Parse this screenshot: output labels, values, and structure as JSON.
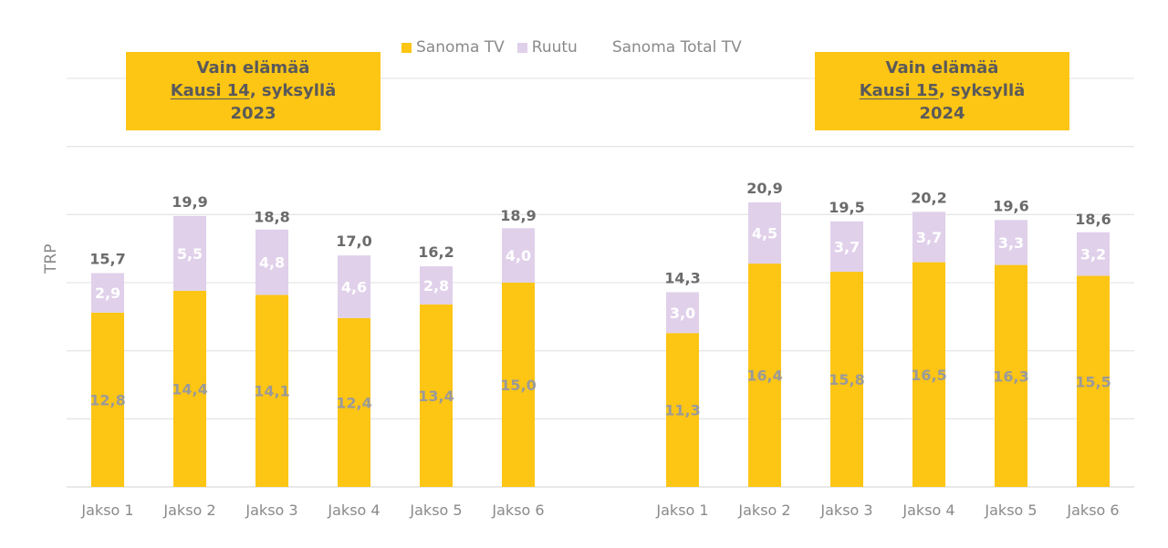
{
  "legend": {
    "items": [
      {
        "label": "Sanoma TV",
        "color": "#FDC514",
        "marker": "square"
      },
      {
        "label": "Ruutu",
        "color": "#E0D0EA",
        "marker": "square"
      },
      {
        "label": "Sanoma Total TV",
        "color": "none",
        "marker": "none"
      }
    ]
  },
  "chart_data": [
    {
      "type": "bar",
      "stacked": true,
      "title_lines": {
        "line1": "Vain elämää",
        "season": "Kausi 14",
        "line2_rest": ", syksyllä",
        "line3": "2023"
      },
      "categories": [
        "Jakso 1",
        "Jakso 2",
        "Jakso 3",
        "Jakso 4",
        "Jakso 5",
        "Jakso 6"
      ],
      "series": [
        {
          "name": "Sanoma TV",
          "color": "#FDC514",
          "values": [
            12.8,
            14.4,
            14.1,
            12.4,
            13.4,
            15.0
          ],
          "labels": [
            "12,8",
            "14,4",
            "14,1",
            "12,4",
            "13,4",
            "15,0"
          ]
        },
        {
          "name": "Ruutu",
          "color": "#E0D0EA",
          "values": [
            2.9,
            5.5,
            4.8,
            4.6,
            2.8,
            4.0
          ],
          "labels": [
            "2,9",
            "5,5",
            "4,8",
            "4,6",
            "2,8",
            "4,0"
          ]
        }
      ],
      "totals": {
        "name": "Sanoma Total TV",
        "values": [
          15.7,
          19.9,
          18.8,
          17.0,
          16.2,
          18.9
        ],
        "labels": [
          "15,7",
          "19,9",
          "18,8",
          "17,0",
          "16,2",
          "18,9"
        ]
      },
      "ylabel": "TRP",
      "ylim": [
        0,
        30
      ],
      "ygrid_step": 5,
      "grid": true,
      "legend_position": "top-center"
    },
    {
      "type": "bar",
      "stacked": true,
      "title_lines": {
        "line1": "Vain elämää",
        "season": "Kausi 15",
        "line2_rest": ", syksyllä",
        "line3": "2024"
      },
      "categories": [
        "Jakso 1",
        "Jakso 2",
        "Jakso 3",
        "Jakso 4",
        "Jakso 5",
        "Jakso 6"
      ],
      "series": [
        {
          "name": "Sanoma TV",
          "color": "#FDC514",
          "values": [
            11.3,
            16.4,
            15.8,
            16.5,
            16.3,
            15.5
          ],
          "labels": [
            "11,3",
            "16,4",
            "15,8",
            "16,5",
            "16,3",
            "15,5"
          ]
        },
        {
          "name": "Ruutu",
          "color": "#E0D0EA",
          "values": [
            3.0,
            4.5,
            3.7,
            3.7,
            3.3,
            3.2
          ],
          "labels": [
            "3,0",
            "4,5",
            "3,7",
            "3,7",
            "3,3",
            "3,2"
          ]
        }
      ],
      "totals": {
        "name": "Sanoma Total TV",
        "values": [
          14.3,
          20.9,
          19.5,
          20.2,
          19.6,
          18.6
        ],
        "labels": [
          "14,3",
          "20,9",
          "19,5",
          "20,2",
          "19,6",
          "18,6"
        ]
      },
      "ylabel": "TRP",
      "ylim": [
        0,
        30
      ],
      "ygrid_step": 5,
      "grid": true,
      "legend_position": "top-center"
    }
  ]
}
